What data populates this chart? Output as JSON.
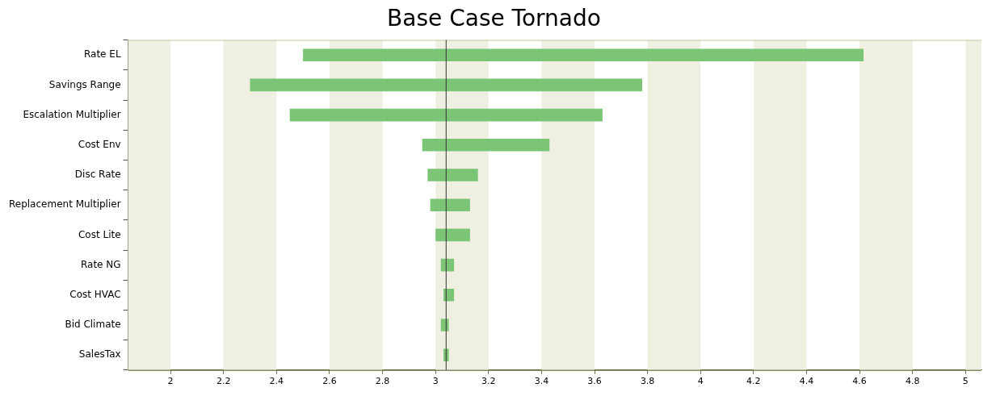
{
  "chart_data": {
    "type": "bar",
    "orientation": "horizontal",
    "title": "Base Case Tornado",
    "categories": [
      "Rate EL",
      "Savings Range",
      "Escalation Multiplier",
      "Cost Env",
      "Disc Rate",
      "Replacement Multiplier",
      "Cost Lite",
      "Rate NG",
      "Cost HVAC",
      "Bid Climate",
      "SalesTax"
    ],
    "base": [
      2.5,
      2.3,
      2.45,
      2.95,
      2.97,
      2.98,
      3.0,
      3.02,
      3.03,
      3.02,
      3.03
    ],
    "values": [
      2.115,
      1.48,
      1.18,
      0.48,
      0.19,
      0.15,
      0.13,
      0.05,
      0.04,
      0.03,
      0.02
    ],
    "color": "#7cc576",
    "xlim": [
      1.84,
      5.06
    ],
    "xticks": [
      2,
      2.2,
      2.4,
      2.6,
      2.8,
      3,
      3.2,
      3.4,
      3.6,
      3.8,
      4,
      4.2,
      4.4,
      4.6,
      4.8,
      5
    ],
    "grid": false,
    "legend": false,
    "ref_lines": [
      {
        "axis": "x",
        "value": 3.04,
        "color": "#333333"
      }
    ],
    "bands": [
      {
        "axis": "x",
        "from": 1.84,
        "to": 2,
        "color": "#efefe2"
      },
      {
        "axis": "x",
        "from": 2.2,
        "to": 2.4,
        "color": "#efefe2"
      },
      {
        "axis": "x",
        "from": 2.6,
        "to": 2.8,
        "color": "#efefe2"
      },
      {
        "axis": "x",
        "from": 3,
        "to": 3.2,
        "color": "#efefe2"
      },
      {
        "axis": "x",
        "from": 3.4,
        "to": 3.6,
        "color": "#efefe2"
      },
      {
        "axis": "x",
        "from": 3.8,
        "to": 4,
        "color": "#efefe2"
      },
      {
        "axis": "x",
        "from": 4.2,
        "to": 4.4,
        "color": "#efefe2"
      },
      {
        "axis": "x",
        "from": 4.6,
        "to": 4.8,
        "color": "#efefe2"
      },
      {
        "axis": "x",
        "from": 5,
        "to": 5.06,
        "color": "#efefe2"
      }
    ]
  }
}
